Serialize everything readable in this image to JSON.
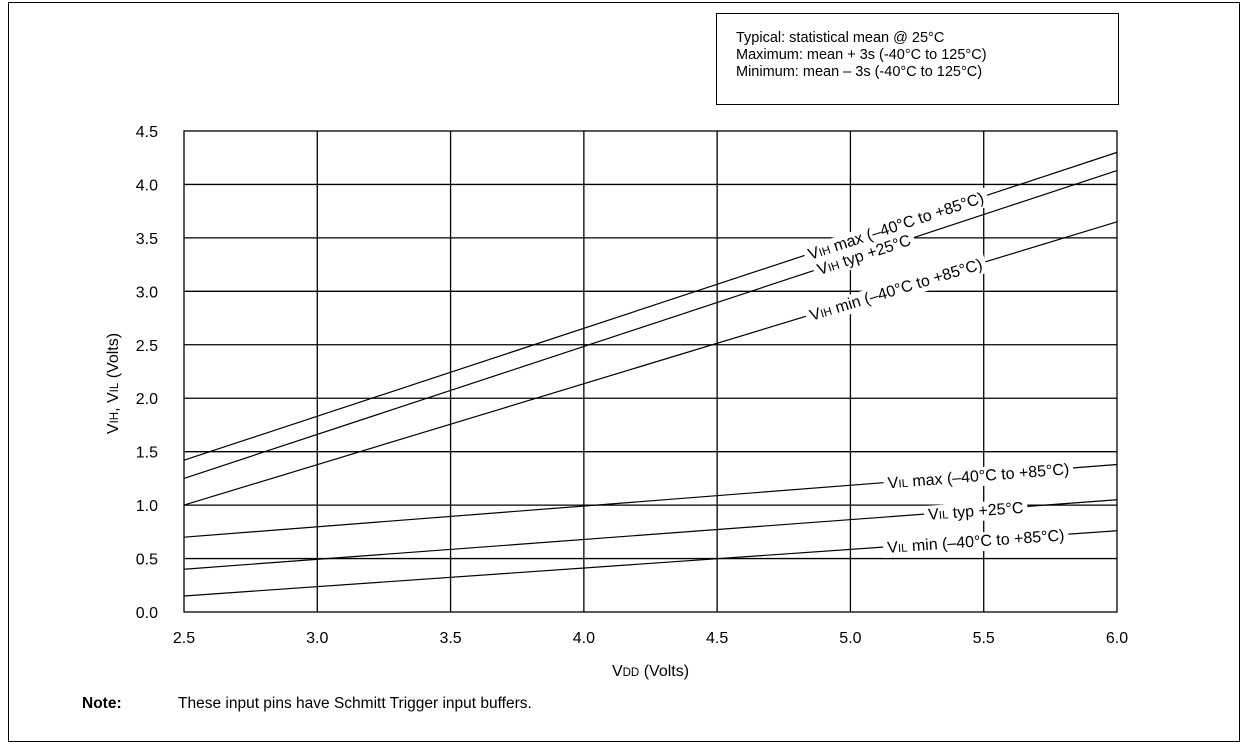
{
  "legend_box": {
    "lines": [
      "Typical:  statistical mean @ 25°C",
      "Maximum:  mean + 3s (-40°C to 125°C)",
      "Minimum:   mean – 3s (-40°C to 125°C)"
    ]
  },
  "note": {
    "label": "Note:",
    "text": "These input pins have Schmitt Trigger input buffers."
  },
  "chart_data": {
    "type": "line",
    "xlabel": "VDD (Volts)",
    "xlabel_parts": [
      "V",
      "DD",
      " (Volts)"
    ],
    "ylabel": "VIH, VIL (Volts)",
    "ylabel_parts": [
      "V",
      "IH",
      ", V",
      "IL",
      " (Volts)"
    ],
    "xlim": [
      2.5,
      6.0
    ],
    "ylim": [
      0.0,
      4.5
    ],
    "xticks": [
      "2.5",
      "3.0",
      "3.5",
      "4.0",
      "4.5",
      "5.0",
      "5.5",
      "6.0"
    ],
    "yticks": [
      "0.0",
      "0.5",
      "1.0",
      "1.5",
      "2.0",
      "2.5",
      "3.0",
      "3.5",
      "4.0",
      "4.5"
    ],
    "grid": true,
    "series": [
      {
        "name": "VIH max (–40°C to +85°C)",
        "label_parts": [
          "V",
          "IH",
          " max (–40°C to +85°C)"
        ],
        "x": [
          2.5,
          6.0
        ],
        "y": [
          1.42,
          4.3
        ]
      },
      {
        "name": "VIH typ +25°C",
        "label_parts": [
          "V",
          "IH",
          " typ +25°C"
        ],
        "x": [
          2.5,
          6.0
        ],
        "y": [
          1.25,
          4.13
        ]
      },
      {
        "name": "VIH min (–40°C to +85°C)",
        "label_parts": [
          "V",
          "IH",
          " min (–40°C to +85°C)"
        ],
        "x": [
          2.5,
          6.0
        ],
        "y": [
          1.0,
          3.65
        ]
      },
      {
        "name": "VIL max (–40°C to +85°C)",
        "label_parts": [
          "V",
          "IL",
          " max (–40°C to +85°C)"
        ],
        "x": [
          2.5,
          6.0
        ],
        "y": [
          0.7,
          1.38
        ]
      },
      {
        "name": "VIL typ +25°C",
        "label_parts": [
          "V",
          "IL",
          " typ +25°C"
        ],
        "x": [
          2.5,
          6.0
        ],
        "y": [
          0.4,
          1.05
        ]
      },
      {
        "name": "VIL min (–40°C to +85°C)",
        "label_parts": [
          "V",
          "IL",
          " min (–40°C to +85°C)"
        ],
        "x": [
          2.5,
          6.0
        ],
        "y": [
          0.15,
          0.76
        ]
      }
    ]
  }
}
